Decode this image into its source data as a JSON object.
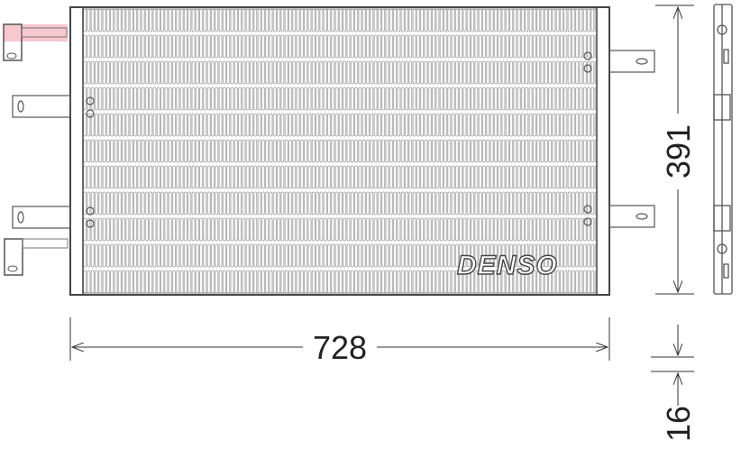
{
  "brand": "DENSO",
  "dimensions": {
    "width": "728",
    "height": "391",
    "depth": "16"
  },
  "colors": {
    "line": "#444444",
    "fin": "#9a9a9a",
    "highlight": "#f4b6bd"
  }
}
